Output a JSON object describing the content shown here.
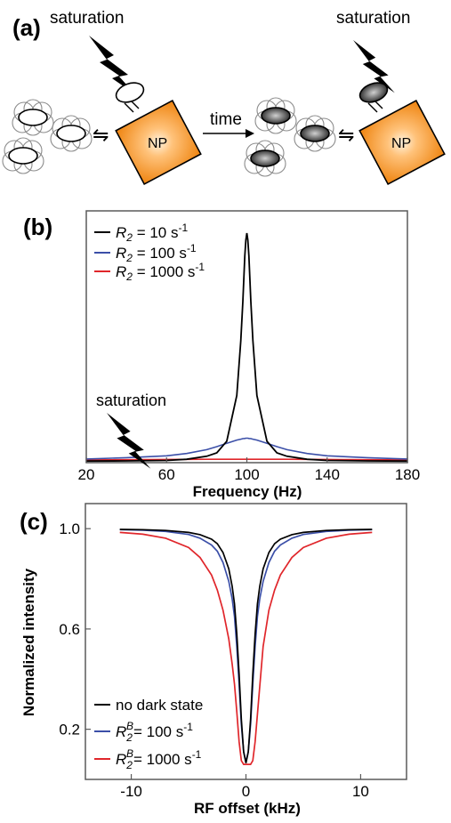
{
  "panel_a": {
    "label": "(a)",
    "saturation_left": "saturation",
    "saturation_right": "saturation",
    "np_left": "NP",
    "np_right": "NP",
    "time": "time",
    "exchange_symbol": "⇋"
  },
  "panel_b": {
    "label": "(b)",
    "annotation": "saturation",
    "legend": [
      {
        "prefix": "R",
        "sub": "2",
        "eq": " = 10 s",
        "sup": "-1",
        "color": "#000000"
      },
      {
        "prefix": "R",
        "sub": "2",
        "eq": " = 100 s",
        "sup": "-1",
        "color": "#3b4fa8"
      },
      {
        "prefix": "R",
        "sub": "2",
        "eq": " = 1000 s",
        "sup": "-1",
        "color": "#e0262b"
      }
    ]
  },
  "panel_c": {
    "label": "(c)",
    "legend": [
      {
        "text": "no dark state",
        "color": "#000000"
      },
      {
        "prefix": "R",
        "sub": "2",
        "sup": "B",
        "eq": "= 100 s",
        "exp": "-1",
        "color": "#3b4fa8"
      },
      {
        "prefix": "R",
        "sub": "2",
        "sup": "B",
        "eq": "= 1000 s",
        "exp": "-1",
        "color": "#e0262b"
      }
    ]
  },
  "chart_data": [
    {
      "type": "line",
      "xlabel": "Frequency (Hz)",
      "ylabel": "",
      "xlim": [
        20,
        180
      ],
      "xticks": [
        "20",
        "60",
        "100",
        "140",
        "180"
      ],
      "x": [
        20,
        40,
        60,
        70,
        80,
        85,
        90,
        95,
        97,
        98,
        99,
        99.5,
        100,
        100.5,
        101,
        102,
        103,
        105,
        110,
        115,
        120,
        130,
        140,
        160,
        180
      ],
      "series": [
        {
          "name": "R2 = 10 s-1",
          "color": "#000000",
          "line_width": 1.8,
          "values": [
            0.003,
            0.004,
            0.006,
            0.011,
            0.024,
            0.039,
            0.09,
            0.29,
            0.53,
            0.7,
            0.9,
            0.97,
            1.0,
            0.97,
            0.9,
            0.7,
            0.53,
            0.29,
            0.09,
            0.039,
            0.024,
            0.011,
            0.006,
            0.004,
            0.003
          ]
        },
        {
          "name": "R2 = 100 s-1",
          "color": "#3b4fa8",
          "line_width": 1.6,
          "values": [
            0.012,
            0.018,
            0.026,
            0.036,
            0.053,
            0.066,
            0.081,
            0.095,
            0.099,
            0.101,
            0.102,
            0.103,
            0.103,
            0.103,
            0.102,
            0.101,
            0.099,
            0.095,
            0.081,
            0.066,
            0.053,
            0.036,
            0.026,
            0.018,
            0.012
          ]
        },
        {
          "name": "R2 = 1000 s-1",
          "color": "#e0262b",
          "line_width": 1.6,
          "values": [
            0.008,
            0.009,
            0.01,
            0.0105,
            0.0108,
            0.011,
            0.011,
            0.011,
            0.011,
            0.011,
            0.011,
            0.011,
            0.011,
            0.011,
            0.011,
            0.011,
            0.011,
            0.011,
            0.011,
            0.011,
            0.0108,
            0.0105,
            0.01,
            0.009,
            0.008
          ]
        }
      ],
      "ylim": [
        0,
        1.0
      ]
    },
    {
      "type": "line",
      "xlabel": "RF offset (kHz)",
      "ylabel": "Normalized intensity",
      "xlim": [
        -14,
        14
      ],
      "ylim": [
        0.0,
        1.1
      ],
      "xticks": [
        "-10",
        "0",
        "10"
      ],
      "yticks": [
        "0.2",
        "0.6",
        "1.0"
      ],
      "x": [
        -11,
        -9,
        -7,
        -5,
        -4,
        -3,
        -2.5,
        -2,
        -1.5,
        -1.2,
        -1,
        -0.8,
        -0.6,
        -0.4,
        -0.2,
        0,
        0.2,
        0.4,
        0.6,
        0.8,
        1,
        1.2,
        1.5,
        2,
        2.5,
        3,
        4,
        5,
        7,
        9,
        11
      ],
      "series": [
        {
          "name": "no dark state",
          "color": "#000000",
          "values": [
            0.997,
            0.996,
            0.993,
            0.985,
            0.976,
            0.958,
            0.94,
            0.905,
            0.84,
            0.77,
            0.7,
            0.58,
            0.42,
            0.24,
            0.11,
            0.065,
            0.11,
            0.24,
            0.42,
            0.58,
            0.7,
            0.77,
            0.84,
            0.905,
            0.94,
            0.958,
            0.976,
            0.985,
            0.993,
            0.996,
            0.997
          ]
        },
        {
          "name": "R2B = 100 s-1",
          "color": "#3b4fa8",
          "values": [
            0.996,
            0.994,
            0.989,
            0.977,
            0.962,
            0.935,
            0.91,
            0.865,
            0.79,
            0.72,
            0.65,
            0.53,
            0.38,
            0.22,
            0.11,
            0.07,
            0.11,
            0.22,
            0.38,
            0.53,
            0.65,
            0.72,
            0.79,
            0.865,
            0.91,
            0.935,
            0.962,
            0.977,
            0.989,
            0.994,
            0.996
          ]
        },
        {
          "name": "R2B = 1000 s-1",
          "color": "#e0262b",
          "values": [
            0.985,
            0.978,
            0.962,
            0.925,
            0.885,
            0.815,
            0.755,
            0.675,
            0.56,
            0.46,
            0.38,
            0.27,
            0.15,
            0.075,
            0.06,
            0.06,
            0.06,
            0.06,
            0.075,
            0.15,
            0.26,
            0.37,
            0.53,
            0.675,
            0.755,
            0.815,
            0.885,
            0.925,
            0.962,
            0.978,
            0.985
          ]
        }
      ]
    }
  ]
}
